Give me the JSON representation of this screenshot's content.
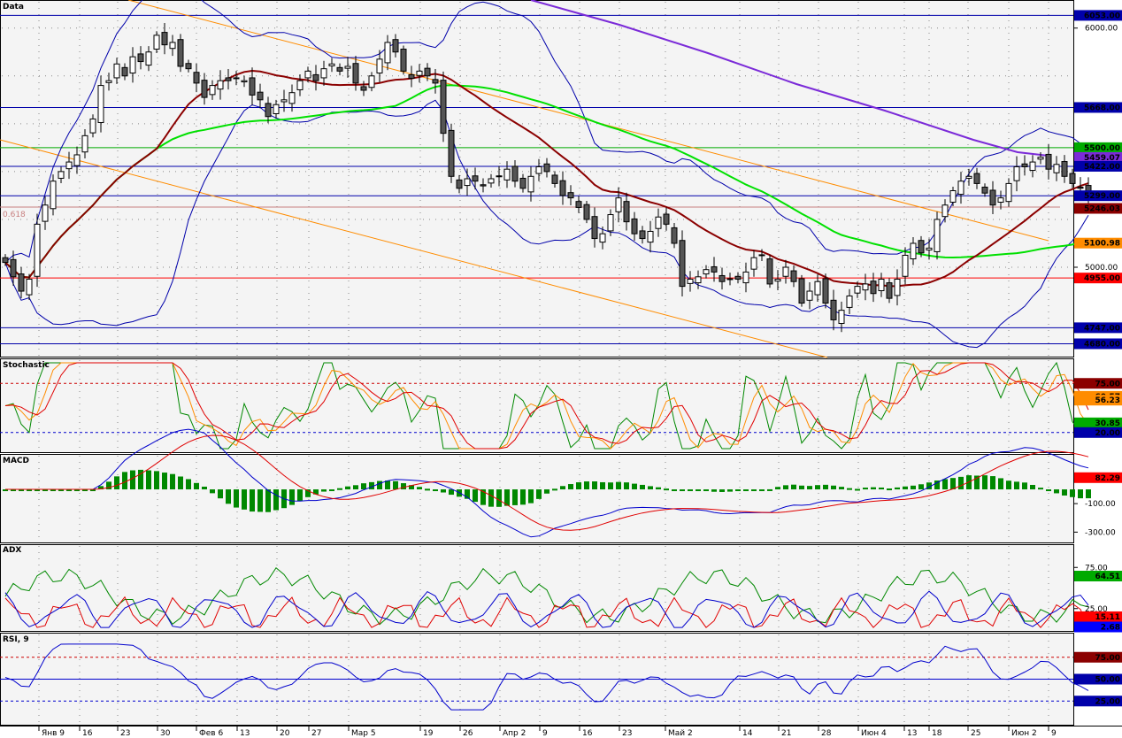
{
  "panels": {
    "price": "Data",
    "stochastic": "Stochastic",
    "macd": "MACD",
    "adx": "ADX",
    "rsi": "RSI, 9"
  },
  "fib_label": "0.618",
  "chart_data": [
    {
      "type": "candlestick",
      "panel": "price",
      "title": "Data",
      "x_labels": [
        "Янв 9",
        "16",
        "23",
        "30",
        "Фев 6",
        "13",
        "20",
        "27",
        "Мар 5",
        "19",
        "26",
        "Апр 2",
        "9",
        "16",
        "23",
        "Май 2",
        "14",
        "21",
        "28",
        "Июн 4",
        "13",
        "18",
        "25",
        "Июн 2",
        "9"
      ],
      "y_ticks": [
        5000,
        6000
      ],
      "y_tick_labels": [
        "5000.00",
        "6000.00"
      ],
      "ylim": [
        4630,
        6110
      ],
      "grid": true,
      "price_levels": [
        {
          "label": "6053.00",
          "value": 6053,
          "color": "#0000aa"
        },
        {
          "label": "5668.00",
          "value": 5668,
          "color": "#0000aa"
        },
        {
          "label": "5500.00",
          "value": 5500,
          "color": "#00aa00"
        },
        {
          "label": "5459.07",
          "value": 5459.07,
          "color": "#7b2bd8",
          "line": false
        },
        {
          "label": "5422.00",
          "value": 5422,
          "color": "#0000aa"
        },
        {
          "label": "5299.00",
          "value": 5299,
          "color": "#0000aa"
        },
        {
          "label": "5246.03",
          "value": 5246.03,
          "color": "#8b0000",
          "line": false
        },
        {
          "label": "5100.98",
          "value": 5100.98,
          "color": "#ff8c00",
          "line": false
        },
        {
          "label": "4955.00",
          "value": 4955,
          "color": "#ff0000"
        },
        {
          "label": "4747.00",
          "value": 4747,
          "color": "#0000aa"
        },
        {
          "label": "4680.00",
          "value": 4680,
          "color": "#0000aa"
        }
      ],
      "close": [
        5020,
        4960,
        4900,
        4950,
        5180,
        5260,
        5360,
        5400,
        5440,
        5470,
        5550,
        5620,
        5760,
        5780,
        5850,
        5800,
        5880,
        5860,
        5900,
        5970,
        5930,
        5940,
        5840,
        5830,
        5770,
        5710,
        5760,
        5780,
        5780,
        5790,
        5780,
        5720,
        5700,
        5630,
        5680,
        5700,
        5730,
        5780,
        5820,
        5780,
        5830,
        5850,
        5820,
        5840,
        5770,
        5740,
        5800,
        5870,
        5940,
        5900,
        5820,
        5790,
        5820,
        5800,
        5770,
        5560,
        5380,
        5330,
        5370,
        5360,
        5340,
        5370,
        5380,
        5410,
        5360,
        5330,
        5380,
        5420,
        5400,
        5350,
        5300,
        5290,
        5250,
        5200,
        5120,
        5140,
        5220,
        5290,
        5190,
        5140,
        5120,
        5150,
        5210,
        5180,
        5100,
        4920,
        4950,
        4960,
        4990,
        4980,
        4940,
        4950,
        4950,
        4980,
        5040,
        5050,
        4930,
        4950,
        5000,
        4940,
        4850,
        4900,
        4940,
        4850,
        4780,
        4820,
        4880,
        4920,
        4930,
        4890,
        4950,
        4870,
        4950,
        5050,
        5100,
        5060,
        5080,
        5200,
        5260,
        5320,
        5360,
        5380,
        5350,
        5310,
        5260,
        5290,
        5350,
        5420,
        5420,
        5440,
        5460,
        5410,
        5430,
        5380,
        5350,
        5330,
        5300
      ]
    },
    {
      "type": "line",
      "panel": "stochastic",
      "title": "Stochastic",
      "ylim": [
        0,
        100
      ],
      "levels": [
        75,
        20
      ],
      "value_labels": [
        {
          "label": "75.00",
          "value": 75,
          "color": "#8b0000"
        },
        {
          "label": "60.57",
          "value": 60.57,
          "color": "#ff8c00"
        },
        {
          "label": "56.23",
          "value": 56.23,
          "color": "#ff8c00"
        },
        {
          "label": "30.85",
          "value": 30.85,
          "color": "#00aa00"
        },
        {
          "label": "20.00",
          "value": 20,
          "color": "#0000aa"
        }
      ]
    },
    {
      "type": "line",
      "panel": "macd",
      "title": "MACD",
      "y_ticks": [
        -100,
        -300
      ],
      "y_tick_labels": [
        "-100.00",
        "-300.00"
      ],
      "ylim": [
        -360,
        230
      ],
      "value_labels": [
        {
          "label": "82.29",
          "value": 82.29,
          "color": "#ff0000"
        }
      ]
    },
    {
      "type": "line",
      "panel": "adx",
      "title": "ADX",
      "y_ticks": [
        75,
        25
      ],
      "y_tick_labels": [
        "75.00",
        "25.00"
      ],
      "ylim": [
        0,
        100
      ],
      "value_labels": [
        {
          "label": "64.51",
          "value": 64.51,
          "color": "#00aa00"
        },
        {
          "label": "15.11",
          "value": 15.11,
          "color": "#ff0000"
        },
        {
          "label": "2.68",
          "value": 2.68,
          "color": "#0000ff"
        }
      ]
    },
    {
      "type": "line",
      "panel": "rsi",
      "title": "RSI, 9",
      "ylim": [
        0,
        100
      ],
      "levels": [
        75,
        50,
        25
      ],
      "value_labels": [
        {
          "label": "75.00",
          "value": 75,
          "color": "#8b0000"
        },
        {
          "label": "50.00",
          "value": 50,
          "color": "#0000aa"
        },
        {
          "label": "25.00",
          "value": 25,
          "color": "#0000aa"
        }
      ]
    }
  ]
}
